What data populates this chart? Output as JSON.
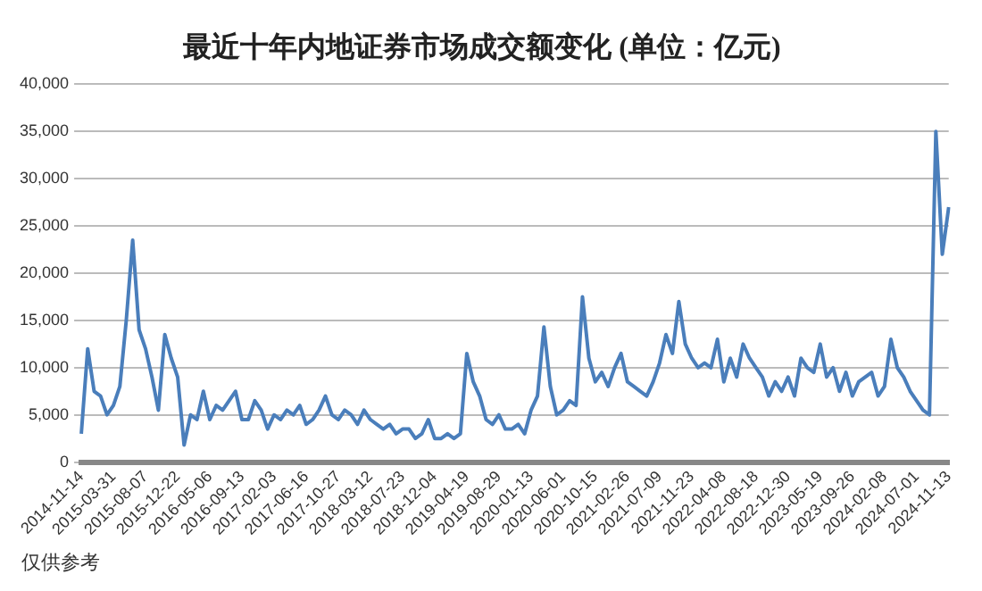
{
  "chart_data": {
    "type": "line",
    "title": "最近十年内地证券市场成交额变化 (单位：亿元)",
    "categories": [
      "2014-11-14",
      null,
      null,
      null,
      null,
      "2015-03-31",
      null,
      null,
      null,
      null,
      "2015-08-07",
      null,
      null,
      null,
      null,
      "2015-12-22",
      null,
      null,
      null,
      null,
      "2016-05-06",
      null,
      null,
      null,
      null,
      "2016-09-13",
      null,
      null,
      null,
      null,
      "2017-02-03",
      null,
      null,
      null,
      null,
      "2017-06-16",
      null,
      null,
      null,
      null,
      "2017-10-27",
      null,
      null,
      null,
      null,
      "2018-03-12",
      null,
      null,
      null,
      null,
      "2018-07-23",
      null,
      null,
      null,
      null,
      "2018-12-04",
      null,
      null,
      null,
      null,
      "2019-04-19",
      null,
      null,
      null,
      null,
      "2019-08-29",
      null,
      null,
      null,
      null,
      "2020-01-13",
      null,
      null,
      null,
      null,
      "2020-06-01",
      null,
      null,
      null,
      null,
      "2020-10-15",
      null,
      null,
      null,
      null,
      "2021-02-26",
      null,
      null,
      null,
      null,
      "2021-07-09",
      null,
      null,
      null,
      null,
      "2021-11-23",
      null,
      null,
      null,
      null,
      "2022-04-08",
      null,
      null,
      null,
      null,
      "2022-08-18",
      null,
      null,
      null,
      null,
      "2022-12-30",
      null,
      null,
      null,
      null,
      "2023-05-19",
      null,
      null,
      null,
      null,
      "2023-09-26",
      null,
      null,
      null,
      null,
      "2024-02-08",
      null,
      null,
      null,
      null,
      "2024-07-01",
      null,
      null,
      null,
      null,
      "2024-11-13"
    ],
    "series": [
      {
        "color": "#4a7ebb",
        "values": [
          3000,
          12000,
          7500,
          7000,
          5000,
          6000,
          8000,
          15000,
          23500,
          14000,
          12000,
          9000,
          5500,
          13500,
          11000,
          9000,
          1800,
          5000,
          4500,
          7500,
          4500,
          6000,
          5500,
          6500,
          7500,
          4500,
          4500,
          6500,
          5500,
          3500,
          5000,
          4500,
          5500,
          5000,
          6000,
          4000,
          4500,
          5500,
          7000,
          5000,
          4500,
          5500,
          5000,
          4000,
          5500,
          4500,
          4000,
          3500,
          4000,
          3000,
          3500,
          3500,
          2500,
          3000,
          4500,
          2500,
          2500,
          3000,
          2500,
          3000,
          11500,
          8500,
          7000,
          4500,
          4000,
          5000,
          3500,
          3500,
          4000,
          3000,
          5500,
          7000,
          14300,
          8000,
          5000,
          5500,
          6500,
          6000,
          17500,
          11000,
          8500,
          9500,
          8000,
          10000,
          11500,
          8500,
          8000,
          7500,
          7000,
          8500,
          10500,
          13500,
          11500,
          17000,
          12500,
          11000,
          10000,
          10500,
          10000,
          13000,
          8500,
          11000,
          9000,
          12500,
          11000,
          10000,
          9000,
          7000,
          8500,
          7500,
          9000,
          7000,
          11000,
          10000,
          9500,
          12500,
          9000,
          10000,
          7500,
          9500,
          7000,
          8500,
          9000,
          9500,
          7000,
          8000,
          13000,
          10000,
          9000,
          7500,
          6500,
          5500,
          5000,
          35000,
          22000,
          27000
        ]
      }
    ],
    "ylim": [
      0,
      40000
    ],
    "yticks": [
      0,
      {
        "value": 5000,
        "label": "5,000"
      },
      {
        "value": 10000,
        "label": "10,000"
      },
      {
        "value": 15000,
        "label": "15,000"
      },
      {
        "value": 20000,
        "label": "20,000"
      },
      {
        "value": 25000,
        "label": "25,000"
      },
      {
        "value": 30000,
        "label": "30,000"
      },
      {
        "value": 35000,
        "label": "35,000"
      },
      {
        "value": 40000,
        "label": "40,000"
      }
    ],
    "grid": "y",
    "legend": false,
    "marker": "none",
    "annotations": [
      "仅供参考"
    ]
  }
}
